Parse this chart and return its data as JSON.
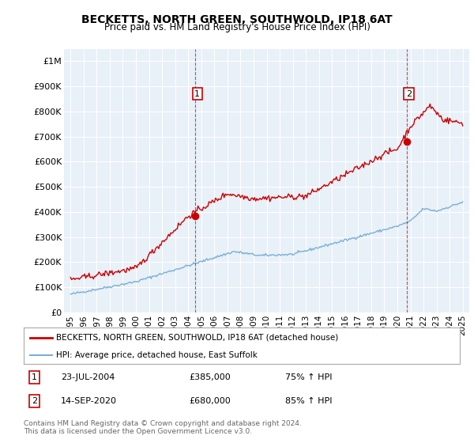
{
  "title": "BECKETTS, NORTH GREEN, SOUTHWOLD, IP18 6AT",
  "subtitle": "Price paid vs. HM Land Registry's House Price Index (HPI)",
  "ylabel_ticks": [
    "£0",
    "£100K",
    "£200K",
    "£300K",
    "£400K",
    "£500K",
    "£600K",
    "£700K",
    "£800K",
    "£900K",
    "£1M"
  ],
  "ytick_values": [
    0,
    100000,
    200000,
    300000,
    400000,
    500000,
    600000,
    700000,
    800000,
    900000,
    1000000
  ],
  "ylim": [
    0,
    1050000
  ],
  "xlim_start": 1994.5,
  "xlim_end": 2025.5,
  "plot_bg_color": "#e8f0f8",
  "grid_color": "#ffffff",
  "red_line_color": "#cc0000",
  "blue_line_color": "#7bafd4",
  "marker1_x": 2004.55,
  "marker1_y": 385000,
  "marker2_x": 2020.72,
  "marker2_y": 680000,
  "annotation1_date": "23-JUL-2004",
  "annotation1_price": "£385,000",
  "annotation1_hpi": "75% ↑ HPI",
  "annotation2_date": "14-SEP-2020",
  "annotation2_price": "£680,000",
  "annotation2_hpi": "85% ↑ HPI",
  "legend_line1": "BECKETTS, NORTH GREEN, SOUTHWOLD, IP18 6AT (detached house)",
  "legend_line2": "HPI: Average price, detached house, East Suffolk",
  "footer": "Contains HM Land Registry data © Crown copyright and database right 2024.\nThis data is licensed under the Open Government Licence v3.0.",
  "xtick_years": [
    1995,
    1996,
    1997,
    1998,
    1999,
    2000,
    2001,
    2002,
    2003,
    2004,
    2005,
    2006,
    2007,
    2008,
    2009,
    2010,
    2011,
    2012,
    2013,
    2014,
    2015,
    2016,
    2017,
    2018,
    2019,
    2020,
    2021,
    2022,
    2023,
    2024,
    2025
  ]
}
